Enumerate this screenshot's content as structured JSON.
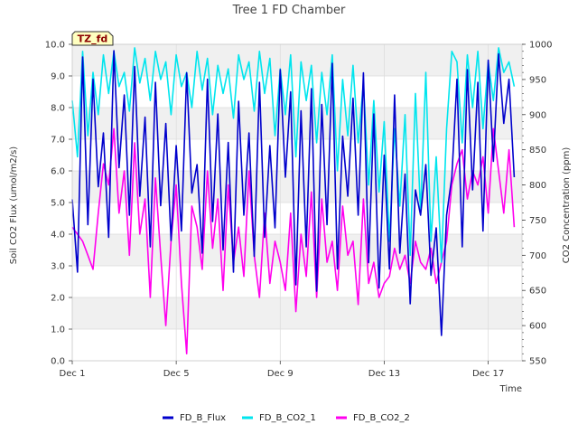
{
  "chart_data": {
    "type": "line",
    "title": "Tree 1 FD Chamber",
    "xlabel": "Time",
    "ylabel": "Soil CO2 Flux (umol/m2/s)",
    "y2label": "CO2 Concentration (ppm)",
    "badge": "TZ_fd",
    "xlim": [
      0,
      17.3
    ],
    "ylim": [
      0,
      10
    ],
    "y2lim": [
      550,
      1000
    ],
    "x_ticks": [
      0,
      4,
      8,
      12,
      16
    ],
    "x_tick_labels": [
      "Dec 1",
      "Dec 5",
      "Dec 9",
      "Dec 13",
      "Dec 17"
    ],
    "y_ticks": [
      0,
      1,
      2,
      3,
      4,
      5,
      6,
      7,
      8,
      9,
      10
    ],
    "y_tick_labels": [
      "0.0",
      "1.0",
      "2.0",
      "3.0",
      "4.0",
      "5.0",
      "6.0",
      "7.0",
      "8.0",
      "9.0",
      "10.0"
    ],
    "y2_ticks": [
      550,
      600,
      650,
      700,
      750,
      800,
      850,
      900,
      950,
      1000
    ],
    "y2_tick_labels": [
      "550",
      "600",
      "650",
      "700",
      "750",
      "800",
      "850",
      "900",
      "950",
      "1000"
    ],
    "grid": true,
    "legend_position": "bottom",
    "series": [
      {
        "name": "FD_B_Flux",
        "color": "#0000cc",
        "axis": "left",
        "x": [
          0.0,
          0.2,
          0.4,
          0.6,
          0.8,
          1.0,
          1.2,
          1.4,
          1.6,
          1.8,
          2.0,
          2.2,
          2.4,
          2.6,
          2.8,
          3.0,
          3.2,
          3.4,
          3.6,
          3.8,
          4.0,
          4.2,
          4.4,
          4.6,
          4.8,
          5.0,
          5.2,
          5.4,
          5.6,
          5.8,
          6.0,
          6.2,
          6.4,
          6.6,
          6.8,
          7.0,
          7.2,
          7.4,
          7.6,
          7.8,
          8.0,
          8.2,
          8.4,
          8.6,
          8.8,
          9.0,
          9.2,
          9.4,
          9.6,
          9.8,
          10.0,
          10.2,
          10.4,
          10.6,
          10.8,
          11.0,
          11.2,
          11.4,
          11.6,
          11.8,
          12.0,
          12.2,
          12.4,
          12.6,
          12.8,
          13.0,
          13.2,
          13.4,
          13.6,
          13.8,
          14.0,
          14.2,
          14.4,
          14.6,
          14.8,
          15.0,
          15.2,
          15.4,
          15.6,
          15.8,
          16.0,
          16.2,
          16.4,
          16.6,
          16.8,
          17.0
        ],
        "values": [
          5.1,
          2.8,
          9.6,
          4.3,
          8.9,
          5.5,
          7.2,
          3.9,
          9.8,
          6.1,
          8.4,
          4.6,
          9.3,
          5.2,
          7.7,
          3.6,
          8.8,
          4.9,
          7.5,
          3.8,
          6.8,
          4.1,
          9.1,
          5.3,
          6.2,
          3.4,
          8.9,
          4.4,
          7.8,
          3.5,
          6.9,
          2.8,
          8.2,
          4.6,
          7.2,
          3.3,
          8.8,
          3.9,
          6.8,
          4.2,
          9.2,
          5.8,
          8.5,
          2.4,
          7.9,
          3.6,
          8.6,
          2.2,
          8.1,
          4.3,
          9.4,
          2.9,
          7.1,
          5.2,
          8.3,
          4.6,
          9.1,
          3.1,
          7.8,
          2.3,
          6.5,
          2.9,
          8.4,
          3.4,
          5.9,
          1.8,
          5.4,
          4.6,
          6.2,
          2.7,
          4.2,
          0.8,
          4.6,
          5.8,
          8.9,
          3.6,
          9.2,
          5.4,
          8.8,
          4.1,
          9.5,
          6.3,
          9.7,
          7.5,
          8.9,
          5.8
        ]
      },
      {
        "name": "FD_B_CO2_1",
        "color": "#00e5ee",
        "axis": "right",
        "x": [
          0.0,
          0.2,
          0.4,
          0.6,
          0.8,
          1.0,
          1.2,
          1.4,
          1.6,
          1.8,
          2.0,
          2.2,
          2.4,
          2.6,
          2.8,
          3.0,
          3.2,
          3.4,
          3.6,
          3.8,
          4.0,
          4.2,
          4.4,
          4.6,
          4.8,
          5.0,
          5.2,
          5.4,
          5.6,
          5.8,
          6.0,
          6.2,
          6.4,
          6.6,
          6.8,
          7.0,
          7.2,
          7.4,
          7.6,
          7.8,
          8.0,
          8.2,
          8.4,
          8.6,
          8.8,
          9.0,
          9.2,
          9.4,
          9.6,
          9.8,
          10.0,
          10.2,
          10.4,
          10.6,
          10.8,
          11.0,
          11.2,
          11.4,
          11.6,
          11.8,
          12.0,
          12.2,
          12.4,
          12.6,
          12.8,
          13.0,
          13.2,
          13.4,
          13.6,
          13.8,
          14.0,
          14.2,
          14.4,
          14.6,
          14.8,
          15.0,
          15.2,
          15.4,
          15.6,
          15.8,
          16.0,
          16.2,
          16.4,
          16.6,
          16.8,
          17.0
        ],
        "values": [
          920,
          840,
          990,
          870,
          960,
          900,
          985,
          930,
          990,
          940,
          960,
          905,
          995,
          945,
          980,
          920,
          990,
          950,
          975,
          900,
          985,
          940,
          960,
          910,
          990,
          935,
          980,
          900,
          970,
          930,
          965,
          895,
          985,
          950,
          975,
          905,
          990,
          930,
          980,
          870,
          965,
          900,
          985,
          840,
          975,
          920,
          970,
          860,
          960,
          900,
          985,
          820,
          950,
          870,
          970,
          860,
          945,
          800,
          920,
          790,
          890,
          720,
          880,
          770,
          900,
          700,
          930,
          760,
          960,
          720,
          840,
          690,
          880,
          990,
          975,
          860,
          985,
          910,
          990,
          880,
          975,
          920,
          995,
          960,
          975,
          940
        ]
      },
      {
        "name": "FD_B_CO2_2",
        "color": "#ff00ee",
        "axis": "right",
        "x": [
          0.0,
          0.2,
          0.4,
          0.6,
          0.8,
          1.0,
          1.2,
          1.4,
          1.6,
          1.8,
          2.0,
          2.2,
          2.4,
          2.6,
          2.8,
          3.0,
          3.2,
          3.4,
          3.6,
          3.8,
          4.0,
          4.2,
          4.4,
          4.6,
          4.8,
          5.0,
          5.2,
          5.4,
          5.6,
          5.8,
          6.0,
          6.2,
          6.4,
          6.6,
          6.8,
          7.0,
          7.2,
          7.4,
          7.6,
          7.8,
          8.0,
          8.2,
          8.4,
          8.6,
          8.8,
          9.0,
          9.2,
          9.4,
          9.6,
          9.8,
          10.0,
          10.2,
          10.4,
          10.6,
          10.8,
          11.0,
          11.2,
          11.4,
          11.6,
          11.8,
          12.0,
          12.2,
          12.4,
          12.6,
          12.8,
          13.0,
          13.2,
          13.4,
          13.6,
          13.8,
          14.0,
          14.2,
          14.4,
          14.6,
          14.8,
          15.0,
          15.2,
          15.4,
          15.6,
          15.8,
          16.0,
          16.2,
          16.4,
          16.6,
          16.8,
          17.0
        ],
        "values": [
          740,
          730,
          720,
          700,
          680,
          760,
          830,
          800,
          880,
          760,
          820,
          700,
          860,
          730,
          780,
          640,
          810,
          700,
          600,
          720,
          800,
          660,
          560,
          770,
          740,
          680,
          820,
          710,
          780,
          650,
          800,
          690,
          740,
          670,
          820,
          700,
          640,
          760,
          660,
          720,
          690,
          650,
          760,
          620,
          730,
          670,
          790,
          640,
          780,
          690,
          720,
          650,
          770,
          700,
          720,
          630,
          780,
          660,
          690,
          640,
          660,
          670,
          710,
          680,
          700,
          660,
          720,
          690,
          680,
          710,
          660,
          690,
          720,
          800,
          830,
          850,
          780,
          820,
          800,
          840,
          760,
          880,
          820,
          760,
          850,
          740
        ]
      }
    ]
  }
}
